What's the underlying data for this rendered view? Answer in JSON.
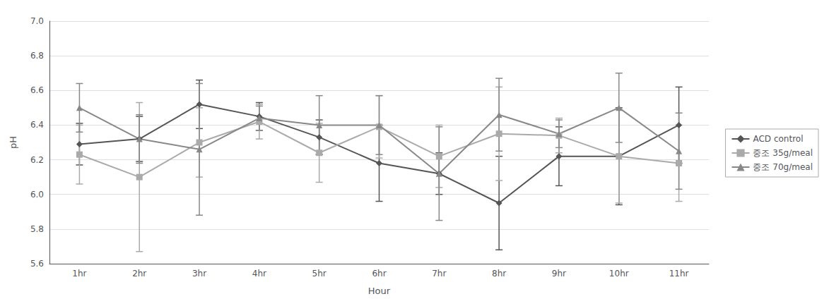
{
  "chart_data": {
    "type": "line",
    "categories": [
      "1hr",
      "2hr",
      "3hr",
      "4hr",
      "5hr",
      "6hr",
      "7hr",
      "8hr",
      "9hr",
      "10hr",
      "11hr"
    ],
    "series": [
      {
        "name": "ACD control",
        "color": "#555555",
        "marker": "diamond",
        "values": [
          6.29,
          6.32,
          6.52,
          6.45,
          6.33,
          6.18,
          6.12,
          5.95,
          6.22,
          6.22,
          6.4
        ],
        "errors": [
          0.12,
          0.13,
          0.14,
          0.08,
          0.1,
          0.22,
          0.12,
          0.27,
          0.17,
          0.28,
          0.22
        ]
      },
      {
        "name": "중조 35g/meal",
        "color": "#aaaaaa",
        "marker": "square",
        "values": [
          6.23,
          6.1,
          6.3,
          6.42,
          6.24,
          6.39,
          6.22,
          6.35,
          6.34,
          6.22,
          6.18
        ],
        "errors": [
          0.17,
          0.43,
          0.2,
          0.1,
          0.17,
          0.18,
          0.18,
          0.27,
          0.1,
          0.27,
          0.22
        ]
      },
      {
        "name": "중조 70g/meal",
        "color": "#888888",
        "marker": "triangle",
        "values": [
          6.5,
          6.32,
          6.26,
          6.44,
          6.4,
          6.4,
          6.12,
          6.46,
          6.35,
          6.5,
          6.25
        ],
        "errors": [
          0.14,
          0.14,
          0.38,
          0.07,
          0.17,
          0.17,
          0.27,
          0.21,
          0.08,
          0.2,
          0.22
        ]
      }
    ],
    "xlabel": "Hour",
    "ylabel": "pH",
    "ylim": [
      5.6,
      7.0
    ],
    "yticks": [
      5.6,
      5.8,
      {
        "value": 6,
        "label": "6.0"
      },
      6.2,
      6.4,
      6.6,
      6.8,
      {
        "value": 7,
        "label": "7.0"
      }
    ],
    "grid": true,
    "legend": "right"
  }
}
